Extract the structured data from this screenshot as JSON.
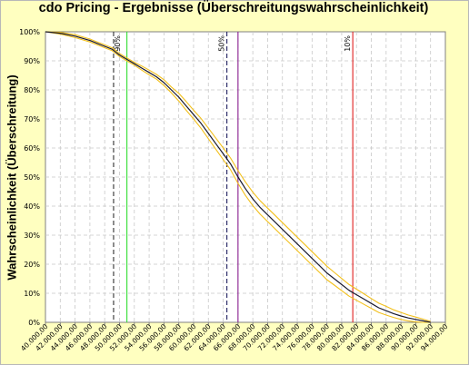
{
  "chart_data": {
    "type": "line",
    "title": "cdo Pricing - Ergebnisse (Überschreitungswahrscheinlichkeit)",
    "xlabel": "",
    "ylabel": "Wahrscheinlichkeit (Überschreitung)",
    "xlim": [
      40000,
      94000
    ],
    "ylim": [
      0,
      100
    ],
    "x_ticks": [
      "40.000,00",
      "42.000,00",
      "44.000,00",
      "46.000,00",
      "48.000,00",
      "50.000,00",
      "52.000,00",
      "54.000,00",
      "56.000,00",
      "58.000,00",
      "60.000,00",
      "62.000,00",
      "64.000,00",
      "66.000,00",
      "68.000,00",
      "70.000,00",
      "72.000,00",
      "74.000,00",
      "76.000,00",
      "78.000,00",
      "80.000,00",
      "82.000,00",
      "84.000,00",
      "86.000,00",
      "88.000,00",
      "90.000,00",
      "92.000,00",
      "94.000,00"
    ],
    "y_ticks": [
      "0%",
      "10%",
      "20%",
      "30%",
      "40%",
      "50%",
      "60%",
      "70%",
      "80%",
      "90%",
      "100%"
    ],
    "grid": true,
    "series": [
      {
        "role": "main",
        "color": "#1a1a2e",
        "x": [
          40000,
          42000,
          44000,
          46000,
          47000,
          48000,
          49000,
          50000,
          51000,
          52000,
          53000,
          54000,
          55000,
          56000,
          57000,
          58000,
          59000,
          60000,
          61000,
          62000,
          63000,
          64000,
          65000,
          66000,
          67000,
          68000,
          69000,
          70000,
          71000,
          72000,
          73000,
          74000,
          75000,
          76000,
          77000,
          78000,
          79000,
          80000,
          81000,
          82000,
          83000,
          84000,
          85000,
          86000,
          87000,
          88000,
          89000,
          90000,
          91000,
          92000
        ],
        "y": [
          100,
          99.5,
          98.5,
          97,
          96,
          95,
          94,
          92,
          90.5,
          89,
          87.5,
          86,
          84.5,
          82.5,
          80,
          77.5,
          74.5,
          71.5,
          68.5,
          65,
          61.5,
          58,
          54.5,
          50,
          46,
          42.5,
          39.5,
          37,
          34.5,
          32,
          29.5,
          27,
          24.5,
          22,
          19.5,
          17,
          15,
          13,
          11,
          9.5,
          8,
          6.5,
          5,
          4,
          3,
          2.2,
          1.5,
          1,
          0.5,
          0
        ]
      },
      {
        "role": "upper-band",
        "color": "#f2c01c",
        "x": [
          40000,
          42000,
          44000,
          46000,
          47000,
          48000,
          49000,
          50000,
          51000,
          52000,
          53000,
          54000,
          55000,
          56000,
          57000,
          58000,
          59000,
          60000,
          61000,
          62000,
          63000,
          64000,
          65000,
          66000,
          67000,
          68000,
          69000,
          70000,
          71000,
          72000,
          73000,
          74000,
          75000,
          76000,
          77000,
          78000,
          79000,
          80000,
          81000,
          82000,
          83000,
          84000,
          85000,
          86000,
          87000,
          88000,
          89000,
          90000,
          91000,
          92000
        ],
        "y": [
          100,
          99.8,
          99,
          97.5,
          96.5,
          95.5,
          94.5,
          92.5,
          91,
          89.5,
          88.2,
          86.8,
          85.3,
          83.5,
          81,
          78.8,
          76,
          73,
          70.2,
          66.8,
          63.4,
          60,
          56.5,
          52.2,
          48.3,
          44.8,
          41.8,
          39.3,
          36.8,
          34.3,
          31.8,
          29.3,
          26.8,
          24.3,
          21.8,
          19.3,
          17.2,
          15.1,
          13,
          11.4,
          9.8,
          8.2,
          6.6,
          5.5,
          4.3,
          3.4,
          2.5,
          1.8,
          1.1,
          0.3
        ]
      },
      {
        "role": "lower-band",
        "color": "#f2c01c",
        "x": [
          40000,
          42000,
          44000,
          46000,
          47000,
          48000,
          49000,
          50000,
          51000,
          52000,
          53000,
          54000,
          55000,
          56000,
          57000,
          58000,
          59000,
          60000,
          61000,
          62000,
          63000,
          64000,
          65000,
          66000,
          67000,
          68000,
          69000,
          70000,
          71000,
          72000,
          73000,
          74000,
          75000,
          76000,
          77000,
          78000,
          79000,
          80000,
          81000,
          82000,
          83000,
          84000,
          85000,
          86000,
          87000,
          88000,
          89000,
          90000,
          91000,
          92000
        ],
        "y": [
          100,
          99.2,
          98,
          96.5,
          95.5,
          94.5,
          93.5,
          91.5,
          90,
          88.5,
          86.8,
          85.2,
          83.7,
          81.5,
          79,
          76.2,
          73,
          70,
          66.8,
          63.2,
          59.6,
          56,
          52.5,
          47.8,
          43.7,
          40.2,
          37.2,
          34.7,
          32.2,
          29.7,
          27.2,
          24.7,
          22.2,
          19.7,
          17.2,
          14.7,
          12.8,
          10.9,
          9,
          7.6,
          6.2,
          4.8,
          3.4,
          2.5,
          1.7,
          1,
          0.5,
          0.2,
          0,
          0
        ]
      }
    ],
    "reference_lines": [
      {
        "x": 64500,
        "color": "#202060",
        "style": "dashed",
        "label": "50%",
        "label_pos": "left"
      },
      {
        "x": 66000,
        "color": "#8a2090",
        "style": "solid",
        "label": ""
      },
      {
        "x": 49200,
        "color": "#303030",
        "style": "dashed",
        "label": "90%",
        "label_pos": "right"
      },
      {
        "x": 51000,
        "color": "#33dd33",
        "style": "solid",
        "label": ""
      },
      {
        "x": 81500,
        "color": "#e02020",
        "style": "solid",
        "label": "10%",
        "label_pos": "left"
      }
    ]
  }
}
